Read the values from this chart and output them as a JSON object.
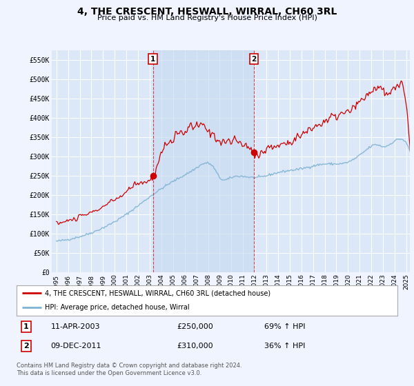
{
  "title": "4, THE CRESCENT, HESWALL, WIRRAL, CH60 3RL",
  "subtitle": "Price paid vs. HM Land Registry's House Price Index (HPI)",
  "background_color": "#f0f4ff",
  "plot_bg_color": "#dce8f8",
  "grid_color": "#ffffff",
  "ylim": [
    0,
    575000
  ],
  "yticks": [
    0,
    50000,
    100000,
    150000,
    200000,
    250000,
    300000,
    350000,
    400000,
    450000,
    500000,
    550000
  ],
  "ytick_labels": [
    "£0",
    "£50K",
    "£100K",
    "£150K",
    "£200K",
    "£250K",
    "£300K",
    "£350K",
    "£400K",
    "£450K",
    "£500K",
    "£550K"
  ],
  "xtick_years": [
    1995,
    1996,
    1997,
    1998,
    1999,
    2000,
    2001,
    2002,
    2003,
    2004,
    2005,
    2006,
    2007,
    2008,
    2009,
    2010,
    2011,
    2012,
    2013,
    2014,
    2015,
    2016,
    2017,
    2018,
    2019,
    2020,
    2021,
    2022,
    2023,
    2024,
    2025
  ],
  "sale1_x": 2003.27,
  "sale1_y": 250000,
  "sale2_x": 2011.92,
  "sale2_y": 310000,
  "red_line_color": "#cc0000",
  "blue_line_color": "#7fb3d3",
  "shade_color": "#c5d8f0",
  "legend_label_red": "4, THE CRESCENT, HESWALL, WIRRAL, CH60 3RL (detached house)",
  "legend_label_blue": "HPI: Average price, detached house, Wirral",
  "sale1_date": "11-APR-2003",
  "sale1_price": "£250,000",
  "sale1_hpi": "69% ↑ HPI",
  "sale2_date": "09-DEC-2011",
  "sale2_price": "£310,000",
  "sale2_hpi": "36% ↑ HPI",
  "footer": "Contains HM Land Registry data © Crown copyright and database right 2024.\nThis data is licensed under the Open Government Licence v3.0.",
  "xlim_start": 1994.6,
  "xlim_end": 2025.3
}
